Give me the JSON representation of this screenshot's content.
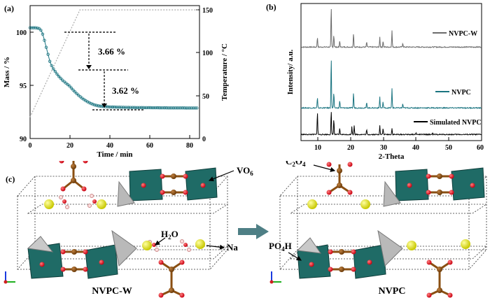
{
  "panel_a": {
    "label": "(a)",
    "chart_data": {
      "type": "line",
      "xlabel": "Time / min",
      "ylabel": "Mass / %",
      "y2label": "Temperature / °C",
      "xlim": [
        0,
        85
      ],
      "ylim": [
        90,
        102
      ],
      "y2lim": [
        0,
        155
      ],
      "xticks": [
        "0",
        "20",
        "40",
        "60",
        "80"
      ],
      "yticks": [
        "90",
        "95",
        "100"
      ],
      "y2ticks": [
        "0",
        "50",
        "100",
        "150"
      ],
      "series": [
        {
          "name": "Mass",
          "color": "#1a7480",
          "x": [
            0,
            3,
            5,
            6,
            7,
            8,
            9,
            10,
            11,
            12,
            14,
            16,
            18,
            20,
            22,
            24,
            26,
            28,
            30,
            32,
            34,
            36,
            40,
            45,
            50,
            55,
            60,
            65,
            70,
            75,
            80,
            84
          ],
          "y": [
            100,
            100,
            99.9,
            99.6,
            99.0,
            98.3,
            97.6,
            96.9,
            96.5,
            96.2,
            95.7,
            95.3,
            95.0,
            94.7,
            94.3,
            93.95,
            93.65,
            93.4,
            93.2,
            93.05,
            92.95,
            92.9,
            92.85,
            92.82,
            92.8,
            92.79,
            92.78,
            92.77,
            92.76,
            92.76,
            92.75,
            92.75
          ]
        },
        {
          "name": "Temperature",
          "color": "#aaaaaa",
          "axis": "right",
          "x": [
            0,
            25,
            84
          ],
          "y": [
            25,
            150,
            150
          ]
        }
      ],
      "annotations": [
        "3.66 %",
        "3.62 %"
      ]
    }
  },
  "panel_b": {
    "label": "(b)",
    "chart_data": {
      "type": "line",
      "xlabel": "2-Theta",
      "ylabel": "Intensity/ a.u.",
      "xlim": [
        5,
        60
      ],
      "xticks": [
        "10",
        "20",
        "30",
        "40",
        "50",
        "60"
      ],
      "series": [
        {
          "name": "NVPC-W",
          "color": "#6b6b6b",
          "peaks": [
            [
              10,
              0.25
            ],
            [
              14.2,
              1.0
            ],
            [
              15,
              0.3
            ],
            [
              16.8,
              0.15
            ],
            [
              21,
              0.35
            ],
            [
              25,
              0.12
            ],
            [
              29,
              0.25
            ],
            [
              30,
              0.15
            ],
            [
              32.7,
              0.4
            ],
            [
              36,
              0.1
            ]
          ]
        },
        {
          "name": "NVPC",
          "color": "#1a7480",
          "peaks": [
            [
              10,
              0.2
            ],
            [
              14.2,
              1.0
            ],
            [
              15,
              0.3
            ],
            [
              16.8,
              0.15
            ],
            [
              21,
              0.3
            ],
            [
              25,
              0.1
            ],
            [
              29,
              0.22
            ],
            [
              30,
              0.12
            ],
            [
              32.7,
              0.38
            ],
            [
              36,
              0.08
            ]
          ]
        },
        {
          "name": "Simulated NVPC",
          "color": "#000000",
          "peaks": [
            [
              10,
              0.75
            ],
            [
              14.2,
              0.78
            ],
            [
              15,
              0.5
            ],
            [
              16.8,
              0.2
            ],
            [
              20.5,
              0.25
            ],
            [
              21.2,
              0.3
            ],
            [
              25,
              0.15
            ],
            [
              29,
              0.3
            ],
            [
              30,
              0.2
            ],
            [
              32.7,
              0.2
            ],
            [
              40,
              0.05
            ],
            [
              45,
              0.05
            ]
          ]
        }
      ]
    }
  },
  "panel_c": {
    "label": "(c)",
    "left_caption": "NVPC-W",
    "right_caption": "NVPC",
    "labels": {
      "vo6": "VO",
      "vo6_sub": "6",
      "h2o_a": "H",
      "h2o_sub": "2",
      "h2o_b": "O",
      "na": "Na",
      "c2o4_a": "C",
      "c2o4_sub1": "2",
      "c2o4_b": "O",
      "c2o4_sub2": "4",
      "po4h_a": "PO",
      "po4h_sub": "4",
      "po4h_b": "H"
    },
    "colors": {
      "octahedron": "#1f6b66",
      "tetrahedron": "#b9b9b9",
      "oxygen": "#e8141a",
      "carbon": "#8a4f12",
      "sodium": "#e6e618",
      "arrow": "#4e7f85"
    }
  }
}
